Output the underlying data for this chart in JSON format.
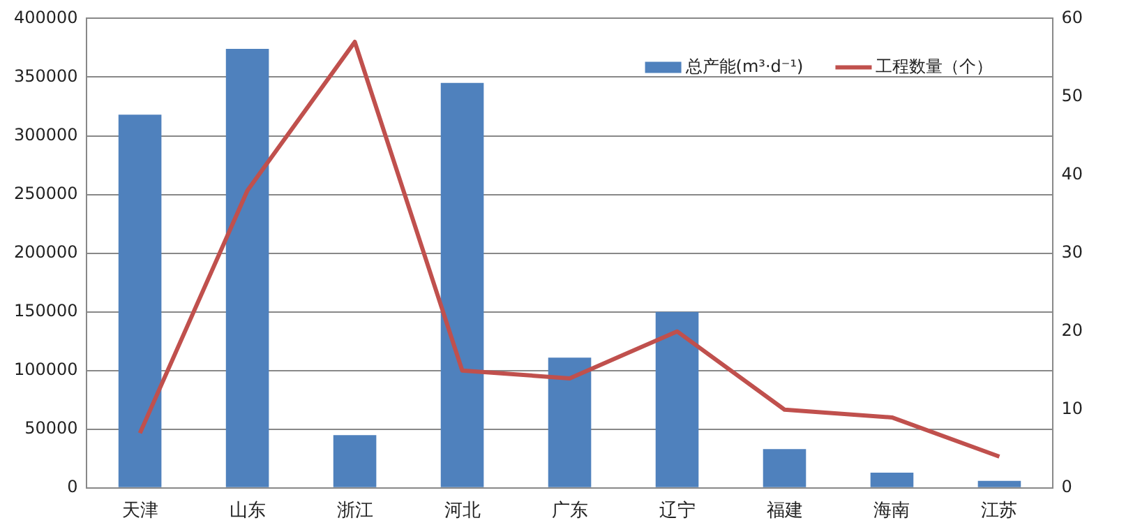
{
  "chart_data": {
    "type": "bar",
    "categories": [
      "天津",
      "山东",
      "浙江",
      "河北",
      "广东",
      "辽宁",
      "福建",
      "海南",
      "江苏"
    ],
    "series": [
      {
        "name": "总产能(m³·d⁻¹)",
        "color": "#4f81bd",
        "values": [
          318000,
          374000,
          45000,
          345000,
          111000,
          150000,
          33000,
          13000,
          6000
        ]
      },
      {
        "name": "工程数量（个）",
        "type": "line",
        "axis": "y2",
        "color": "#c0504d",
        "marker": "none",
        "values": [
          7,
          38,
          57,
          15,
          14,
          20,
          10,
          9,
          4
        ]
      }
    ],
    "ylim": [
      0,
      400000
    ],
    "yticks": [
      0,
      50000,
      100000,
      150000,
      200000,
      250000,
      300000,
      350000,
      400000
    ],
    "y2lim": [
      0,
      60
    ],
    "y2ticks": [
      0,
      10,
      20,
      30,
      40,
      50,
      60
    ],
    "grid": "y",
    "legend": "top right"
  }
}
